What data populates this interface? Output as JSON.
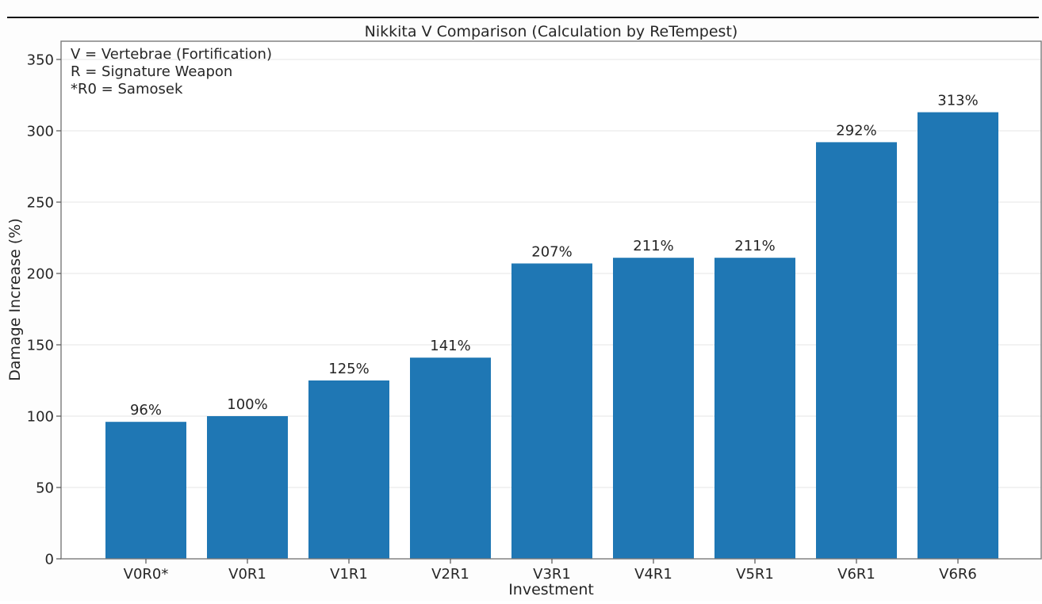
{
  "chart_data": {
    "type": "bar",
    "title": "Nikkita V Comparison (Calculation by ReTempest)",
    "xlabel": "Investment",
    "ylabel": "Damage Increase (%)",
    "categories": [
      "V0R0*",
      "V0R1",
      "V1R1",
      "V2R1",
      "V3R1",
      "V4R1",
      "V5R1",
      "V6R1",
      "V6R6"
    ],
    "values": [
      96,
      100,
      125,
      141,
      207,
      211,
      211,
      292,
      313
    ],
    "data_labels": [
      "96%",
      "100%",
      "125%",
      "141%",
      "207%",
      "211%",
      "211%",
      "292%",
      "313%"
    ],
    "ylim": [
      0,
      350
    ],
    "yticks": [
      0,
      50,
      100,
      150,
      200,
      250,
      300,
      350
    ],
    "ytick_labels": [
      "0",
      "50",
      "100",
      "150",
      "200",
      "250",
      "300",
      "350"
    ],
    "grid": "y",
    "bar_color": "#1f77b4",
    "annotation_lines": [
      "V = Vertebrae (Fortification)",
      "R = Signature Weapon",
      "*R0 = Samosek"
    ],
    "annotation_placement": "top-left"
  }
}
